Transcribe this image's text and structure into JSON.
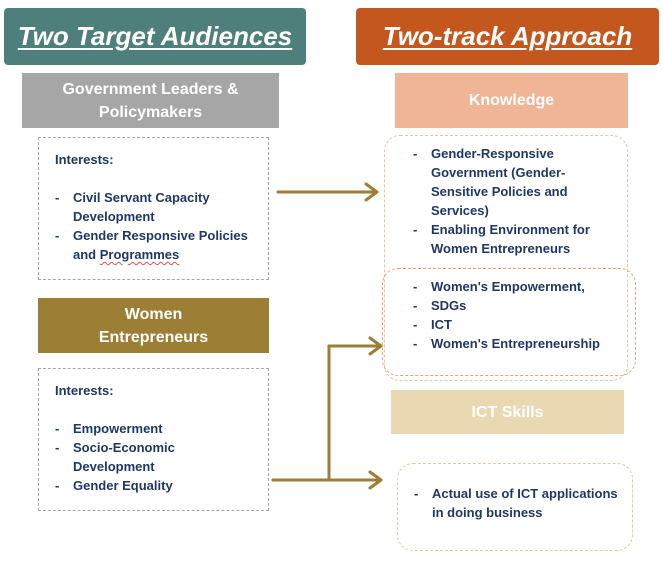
{
  "left": {
    "title": "Two Target Audiences",
    "gov_header": "Government Leaders & Policymakers",
    "gov_box": {
      "heading": "Interests:",
      "items": [
        "Civil Servant Capacity Development",
        "Gender Responsive Policies and Programmes"
      ]
    },
    "women_header": "Women Entrepreneurs",
    "women_box": {
      "heading": "Interests:",
      "items": [
        "Empowerment",
        "Socio-Economic Development",
        "Gender Equality"
      ]
    }
  },
  "right": {
    "title": "Two-track Approach",
    "knowledge_header": "Knowledge",
    "knowledge_items": [
      "Gender-Responsive Government (Gender-Sensitive Policies and Services)",
      "Enabling Environment for Women Entrepreneurs"
    ],
    "shared_items": [
      "Women's Empowerment,",
      "SDGs",
      "ICT",
      "Women's Entrepreneurship"
    ],
    "ict_header": "ICT Skills",
    "ict_items": [
      "Actual use of ICT applications in doing business"
    ]
  },
  "colors": {
    "teal": "#4f7f7b",
    "rust": "#c4571e",
    "gray": "#a6a6a6",
    "olive": "#9c7e35",
    "salmon": "#f0b596",
    "sand": "#ead8b3",
    "arrow": "#9c7e35",
    "text": "#1f3864"
  }
}
